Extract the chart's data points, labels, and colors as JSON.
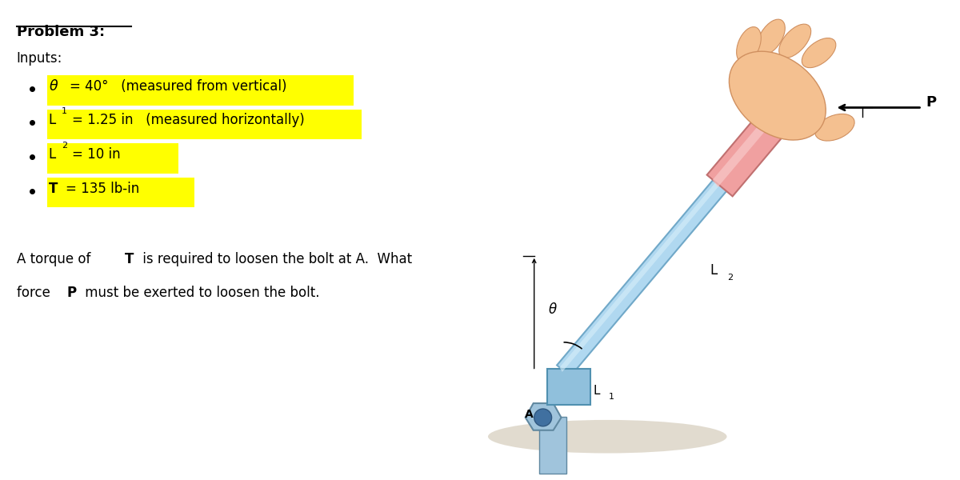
{
  "title": "Problem 3:",
  "inputs_label": "Inputs:",
  "highlight_color": "#FFFF00",
  "text_color": "#000000",
  "background_color": "#FFFFFF",
  "theta_val": "= 40°   (measured from vertical)",
  "L1_val": "= 1.25 in   (measured horizontally)",
  "L2_val": "= 10 in",
  "T_val": "= 135 lb-in",
  "desc1a": "A torque of ",
  "desc1b": "T",
  "desc1c": " is required to loosen the bolt at A.  What",
  "desc2a": "force ",
  "desc2b": "P",
  "desc2c": " must be exerted to loosen the bolt.",
  "theta_label": "θ",
  "L2_label": "L",
  "L2_sub": "2",
  "L1_label": "L",
  "L1_sub": "1",
  "A_label": "A",
  "P_label": "P",
  "theta_deg": 40,
  "bar_color": "#B0D8F0",
  "bar_edge": "#70A8C8",
  "handle_color": "#F0A0A0",
  "handle_edge": "#C07070",
  "hand_color": "#F4C090",
  "hand_edge": "#D09060",
  "bolt_color": "#A0C4DC",
  "bolt_edge": "#6088A0",
  "socket_color": "#90C0DC",
  "socket_edge": "#5090B0",
  "shadow_color": "#D8D0C0",
  "hole_color": "#4070A0"
}
